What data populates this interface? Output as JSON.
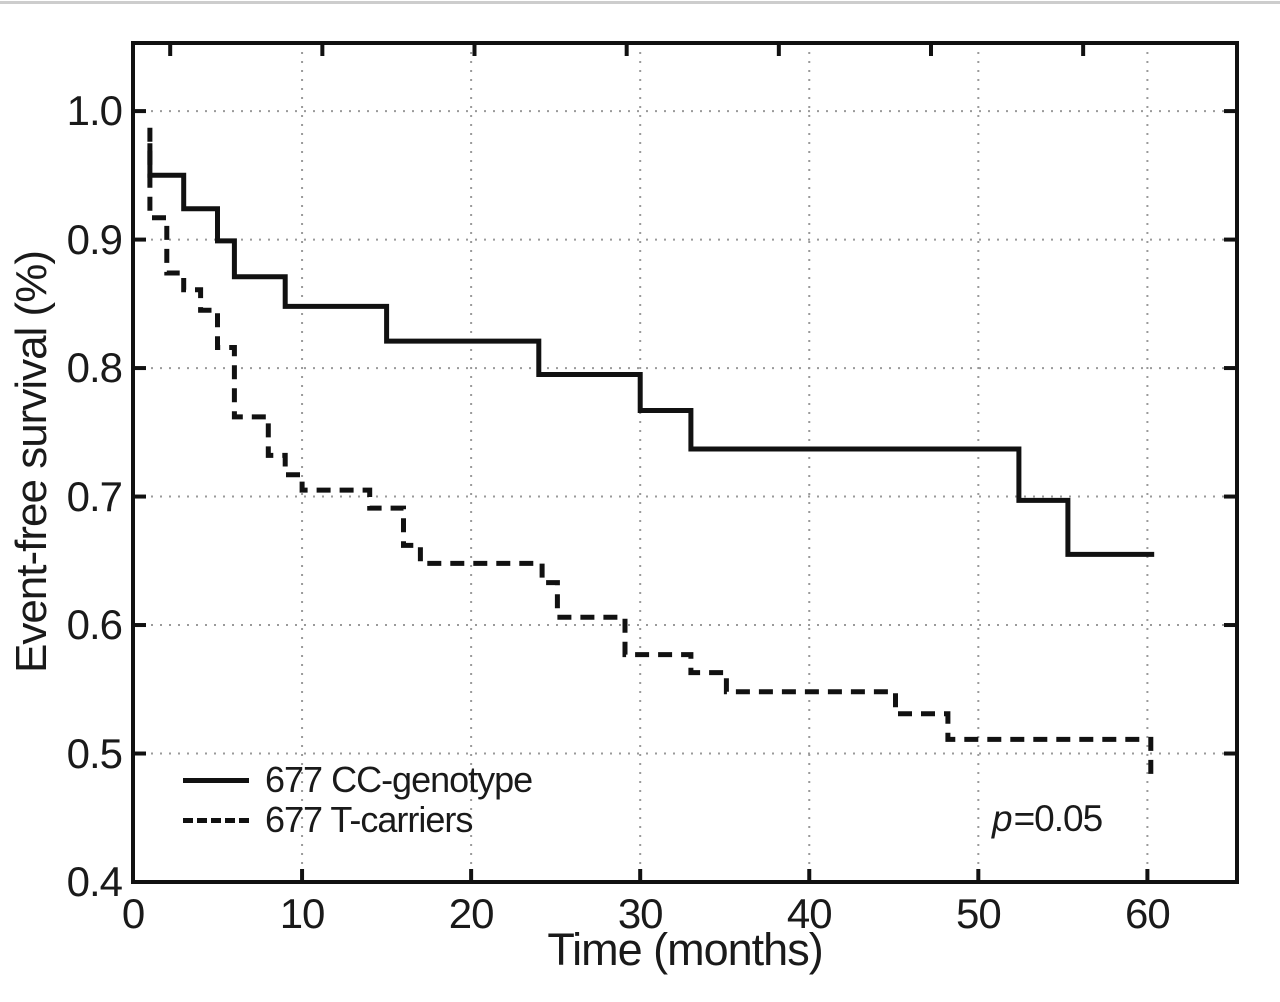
{
  "chart_data": {
    "type": "line",
    "subtype": "kaplan-meier-step",
    "title": "",
    "xlabel": "Time (months)",
    "ylabel": "Event-free survival (%)",
    "xlim": [
      0,
      65.3
    ],
    "ylim": [
      0.4,
      1.053
    ],
    "xticks": [
      0,
      10,
      20,
      30,
      40,
      50,
      60
    ],
    "yticks": [
      0.4,
      0.5,
      0.6,
      0.7,
      0.8,
      0.9,
      1.0
    ],
    "ytick_labels": [
      "0.4",
      "0.5",
      "0.6",
      "0.7",
      "0.8",
      "0.9",
      "1.0"
    ],
    "grid": true,
    "grid_style": "dotted",
    "top_tick_months": [
      2.2,
      11.2,
      20.2,
      29.2,
      38.2,
      47.2,
      56.2
    ],
    "legend_position": "inside-bottom-left",
    "series": [
      {
        "name": "677 CC-genotype",
        "line_style": "solid",
        "color": "#111111",
        "start": {
          "t": 1,
          "s": 0.975
        },
        "steps": [
          [
            1,
            0.95
          ],
          [
            3,
            0.924
          ],
          [
            5,
            0.899
          ],
          [
            6,
            0.871
          ],
          [
            9,
            0.848
          ],
          [
            15,
            0.821
          ],
          [
            24,
            0.795
          ],
          [
            30,
            0.767
          ],
          [
            33,
            0.737
          ],
          [
            52.4,
            0.697
          ],
          [
            55.3,
            0.655
          ]
        ],
        "end_t": 60.4
      },
      {
        "name": "677 T-carriers",
        "line_style": "dashed",
        "color": "#111111",
        "start": {
          "t": 1,
          "s": 0.987
        },
        "steps": [
          [
            1,
            0.917
          ],
          [
            2,
            0.874
          ],
          [
            3,
            0.861
          ],
          [
            4,
            0.845
          ],
          [
            5,
            0.816
          ],
          [
            6,
            0.762
          ],
          [
            8,
            0.732
          ],
          [
            9,
            0.717
          ],
          [
            10,
            0.705
          ],
          [
            14,
            0.691
          ],
          [
            16,
            0.662
          ],
          [
            17,
            0.648
          ],
          [
            24.2,
            0.633
          ],
          [
            25.1,
            0.606
          ],
          [
            29.1,
            0.577
          ],
          [
            33,
            0.563
          ],
          [
            35.1,
            0.548
          ],
          [
            45.1,
            0.531
          ],
          [
            48.2,
            0.511
          ],
          [
            60.2,
            0.479
          ]
        ],
        "end_t": 60.2
      }
    ],
    "annotation": {
      "p_italic": "p",
      "p_text": "=0.05"
    }
  },
  "colors": {
    "curve": "#111111",
    "frame": "#111111",
    "grid": "#9a9a9a",
    "text": "#1a1a1a",
    "background": "#ffffff"
  }
}
